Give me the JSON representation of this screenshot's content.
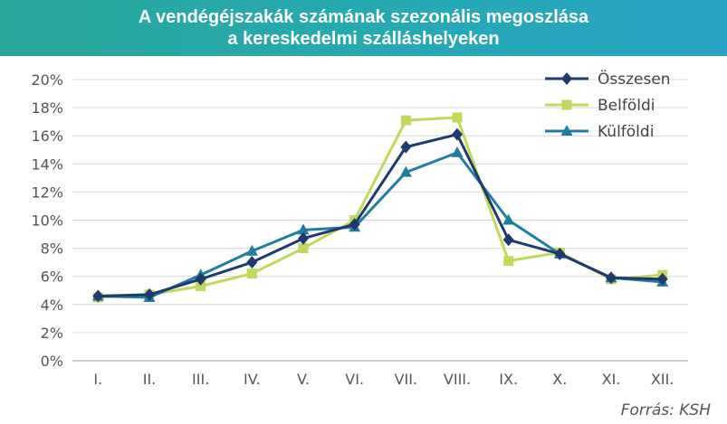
{
  "title": {
    "line1": "A vendégéjszakák számának szezonális megoszlása",
    "line2": "a kereskedelmi szálláshelyeken"
  },
  "source": "Forrás: KSH",
  "colors": {
    "title_bg": "#26a9b3",
    "Összesen": "#1f3a6e",
    "Belföldi": "#bfd95c",
    "Külföldi": "#1f7ea0"
  },
  "chart_data": {
    "type": "line",
    "categories": [
      "I.",
      "II.",
      "III.",
      "IV.",
      "V.",
      "VI.",
      "VII.",
      "VIII.",
      "IX.",
      "X.",
      "XI.",
      "XII."
    ],
    "series": [
      {
        "name": "Összesen",
        "marker": "diamond",
        "color": "#1f3a6e",
        "values": [
          4.6,
          4.7,
          5.8,
          7.0,
          8.7,
          9.7,
          15.2,
          16.1,
          8.6,
          7.6,
          5.9,
          5.8
        ]
      },
      {
        "name": "Belföldi",
        "marker": "square",
        "color": "#bfd95c",
        "values": [
          4.5,
          4.7,
          5.3,
          6.2,
          8.0,
          10.0,
          17.1,
          17.3,
          7.1,
          7.7,
          5.8,
          6.1
        ]
      },
      {
        "name": "Külföldi",
        "marker": "triangle",
        "color": "#1f7ea0",
        "values": [
          4.6,
          4.5,
          6.1,
          7.8,
          9.3,
          9.5,
          13.4,
          14.8,
          10.0,
          7.6,
          5.9,
          5.6
        ]
      }
    ],
    "yticks": [
      "0%",
      "2%",
      "4%",
      "6%",
      "8%",
      "10%",
      "12%",
      "14%",
      "16%",
      "18%",
      "20%"
    ],
    "ylim": [
      0,
      20
    ],
    "grid": true,
    "legend": "top-right"
  }
}
